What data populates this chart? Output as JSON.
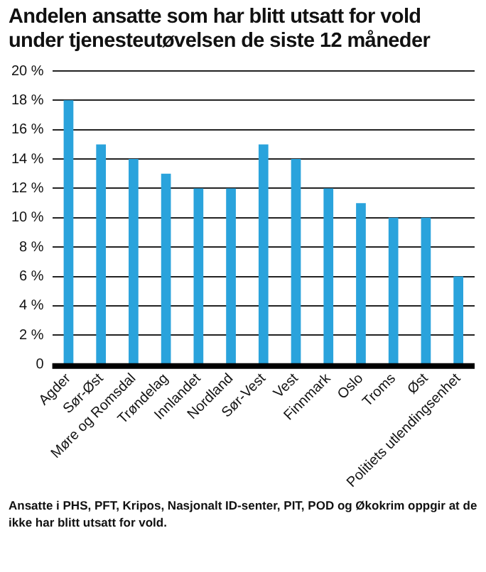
{
  "chart_data": {
    "type": "bar",
    "title": "Andelen ansatte som har blitt utsatt for vold under tjenesteutøvelsen de siste 12 måneder",
    "categories": [
      "Agder",
      "Sør-Øst",
      "Møre og Romsdal",
      "Trøndelag",
      "Innlandet",
      "Nordland",
      "Sør-Vest",
      "Vest",
      "Finnmark",
      "Oslo",
      "Troms",
      "Øst",
      "Politiets utlendingsenhet"
    ],
    "values": [
      18,
      15,
      14,
      13,
      12,
      12,
      15,
      14,
      12,
      11,
      10,
      10,
      6
    ],
    "color": "#2aa3dc",
    "ylim": [
      0,
      20
    ],
    "yticks": [
      {
        "value": 0,
        "label": "0"
      },
      {
        "value": 2,
        "label": "2 %"
      },
      {
        "value": 4,
        "label": "4 %"
      },
      {
        "value": 6,
        "label": "6 %"
      },
      {
        "value": 8,
        "label": "8 %"
      },
      {
        "value": 10,
        "label": "10 %"
      },
      {
        "value": 12,
        "label": "12 %"
      },
      {
        "value": 14,
        "label": "14 %"
      },
      {
        "value": 16,
        "label": "16 %"
      },
      {
        "value": 18,
        "label": "18 %"
      },
      {
        "value": 20,
        "label": "20 %"
      }
    ],
    "grid": "y",
    "annotations": [
      "Ansatte i PHS, PFT, Kripos, Nasjonalt ID-senter, PIT, POD og Økokrim oppgir at de ikke har blitt utsatt for vold."
    ]
  }
}
